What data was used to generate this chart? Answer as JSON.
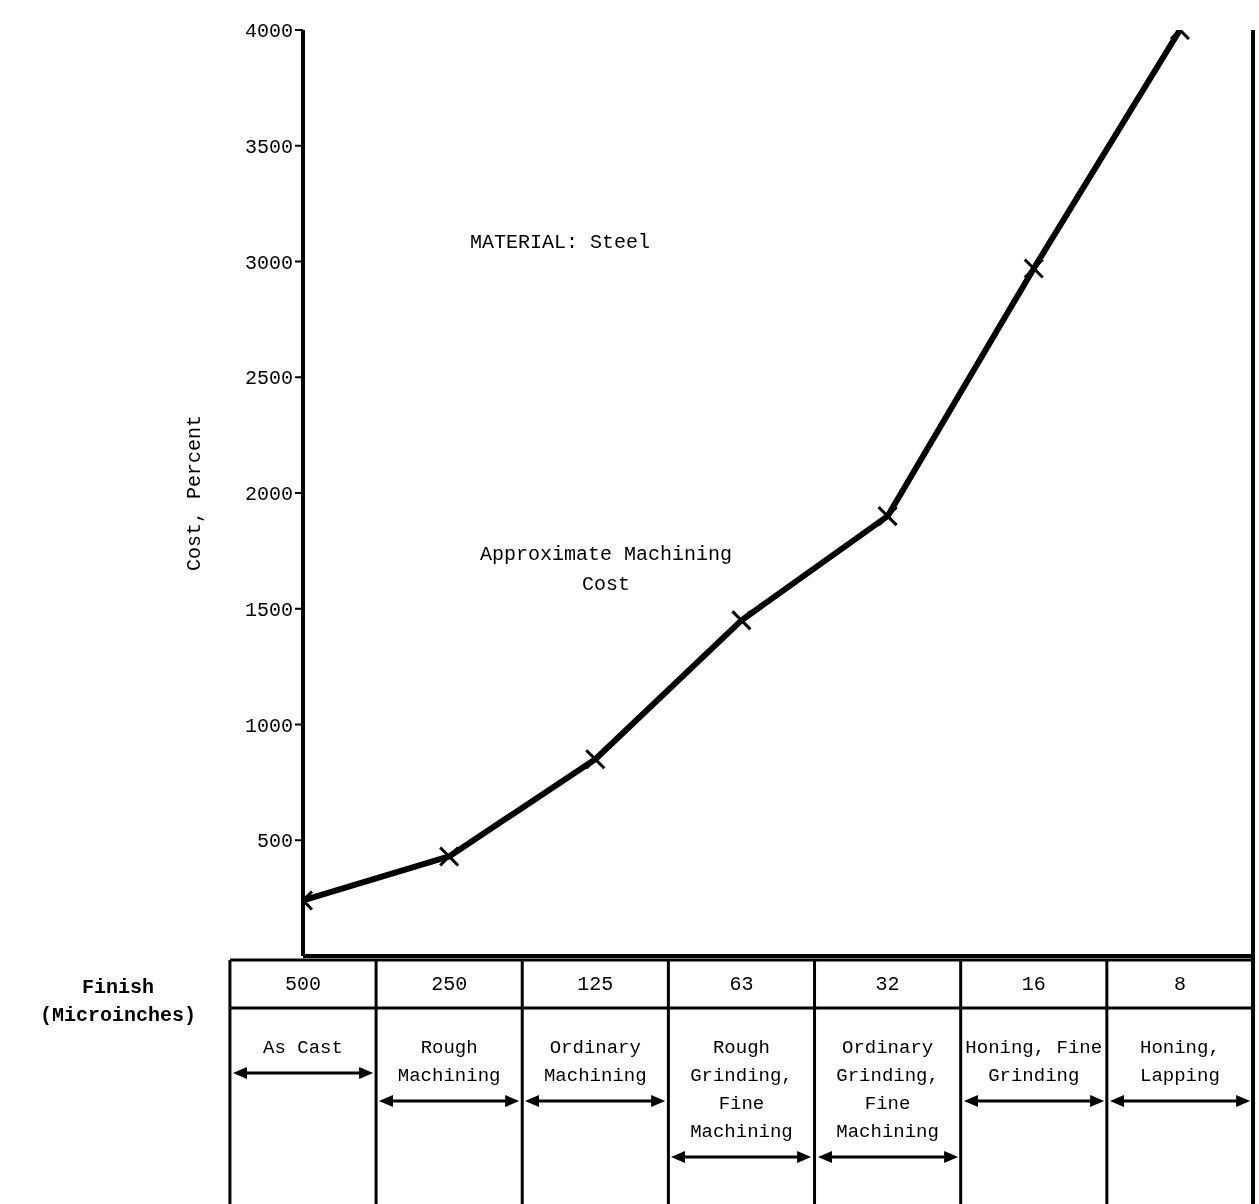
{
  "chart_data": {
    "type": "line",
    "ylabel": "Cost, Percent",
    "xlabel": "Finish (Microinches)",
    "categories": [
      "500",
      "250",
      "125",
      "63",
      "32",
      "16",
      "8"
    ],
    "values": [
      240,
      430,
      850,
      1450,
      1900,
      2970,
      4000
    ],
    "color": "#000000",
    "marker": "cross",
    "ylim": [
      0,
      4000
    ],
    "yticks": [
      500,
      1000,
      1500,
      2000,
      2500,
      3000,
      3500,
      4000
    ],
    "annotations": [
      "MATERIAL: Steel",
      "Approximate Machining Cost",
      "As Cast",
      "Rough Machining",
      "Ordinary Machining",
      "Rough Grinding, Fine Machining",
      "Ordinary Grinding, Fine Machining",
      "Honing, Fine Grinding",
      "Honing, Lapping"
    ]
  }
}
